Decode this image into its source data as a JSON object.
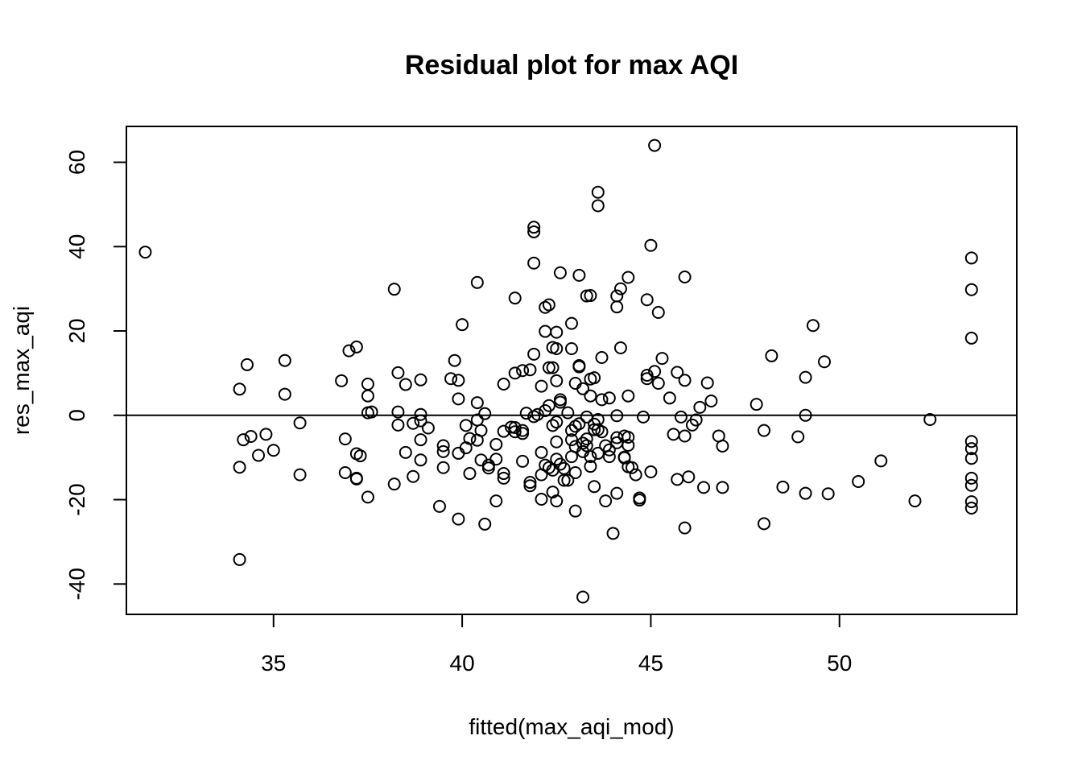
{
  "chart_data": {
    "type": "scatter",
    "title": "Residual plot for max AQI",
    "xlabel": "fitted(max_aqi_mod)",
    "ylabel": "res_max_aqi",
    "xlim": [
      31.1,
      54.7
    ],
    "ylim": [
      -47.2,
      68.5
    ],
    "xticks": [
      35,
      40,
      45,
      50
    ],
    "yticks": [
      -40,
      -20,
      0,
      20,
      40,
      60
    ],
    "hline": 0,
    "grid": false,
    "legend": "none",
    "marker_color": "#000000",
    "points": [
      [
        31.6,
        38.7
      ],
      [
        34.1,
        6.2
      ],
      [
        34.1,
        -12.3
      ],
      [
        34.1,
        -34.2
      ],
      [
        34.2,
        -5.8
      ],
      [
        34.3,
        12.0
      ],
      [
        34.4,
        -5.0
      ],
      [
        34.6,
        -9.5
      ],
      [
        34.8,
        -4.5
      ],
      [
        35.0,
        -8.3
      ],
      [
        35.3,
        13.0
      ],
      [
        35.3,
        5.0
      ],
      [
        35.7,
        -1.8
      ],
      [
        35.7,
        -14.1
      ],
      [
        36.8,
        8.2
      ],
      [
        36.9,
        -5.6
      ],
      [
        36.9,
        -13.6
      ],
      [
        37.0,
        15.3
      ],
      [
        37.2,
        16.2
      ],
      [
        37.2,
        -9.1
      ],
      [
        37.2,
        -14.9
      ],
      [
        37.2,
        -15.1
      ],
      [
        37.3,
        -9.6
      ],
      [
        37.5,
        7.4
      ],
      [
        37.5,
        4.6
      ],
      [
        37.5,
        0.6
      ],
      [
        37.5,
        -19.4
      ],
      [
        37.6,
        0.8
      ],
      [
        38.2,
        29.9
      ],
      [
        38.2,
        -16.3
      ],
      [
        38.3,
        10.1
      ],
      [
        38.3,
        0.8
      ],
      [
        38.3,
        -2.3
      ],
      [
        38.5,
        7.3
      ],
      [
        38.5,
        -8.8
      ],
      [
        38.7,
        -1.9
      ],
      [
        38.7,
        -14.5
      ],
      [
        38.9,
        8.4
      ],
      [
        38.9,
        0.2
      ],
      [
        38.9,
        -1.3
      ],
      [
        38.9,
        -5.8
      ],
      [
        38.9,
        -10.6
      ],
      [
        39.1,
        -3.0
      ],
      [
        39.4,
        -21.6
      ],
      [
        39.5,
        -7.2
      ],
      [
        39.5,
        -8.6
      ],
      [
        39.5,
        -12.4
      ],
      [
        39.7,
        8.7
      ],
      [
        39.8,
        13.0
      ],
      [
        39.9,
        8.3
      ],
      [
        39.9,
        3.9
      ],
      [
        39.9,
        -9.0
      ],
      [
        39.9,
        -24.6
      ],
      [
        40.0,
        21.5
      ],
      [
        40.1,
        -2.4
      ],
      [
        40.1,
        -7.7
      ],
      [
        40.2,
        -5.5
      ],
      [
        40.2,
        -13.8
      ],
      [
        40.4,
        31.5
      ],
      [
        40.4,
        3.0
      ],
      [
        40.4,
        -1.1
      ],
      [
        40.4,
        -5.9
      ],
      [
        40.5,
        -10.6
      ],
      [
        40.5,
        -3.6
      ],
      [
        40.6,
        0.4
      ],
      [
        40.6,
        -25.8
      ],
      [
        40.7,
        -11.8
      ],
      [
        40.7,
        -12.5
      ],
      [
        40.9,
        -6.9
      ],
      [
        40.9,
        -10.4
      ],
      [
        40.9,
        -20.3
      ],
      [
        41.1,
        7.4
      ],
      [
        41.1,
        -3.8
      ],
      [
        41.1,
        -13.8
      ],
      [
        41.1,
        -14.9
      ],
      [
        41.3,
        -2.8
      ],
      [
        41.4,
        27.8
      ],
      [
        41.4,
        10.0
      ],
      [
        41.4,
        -2.9
      ],
      [
        41.4,
        -3.9
      ],
      [
        41.6,
        10.6
      ],
      [
        41.6,
        -3.6
      ],
      [
        41.6,
        -4.3
      ],
      [
        41.6,
        -10.9
      ],
      [
        41.7,
        0.5
      ],
      [
        41.8,
        10.8
      ],
      [
        41.8,
        -15.9
      ],
      [
        41.8,
        -16.7
      ],
      [
        41.9,
        44.6
      ],
      [
        41.9,
        43.5
      ],
      [
        41.9,
        36.1
      ],
      [
        41.9,
        14.5
      ],
      [
        41.9,
        -0.3
      ],
      [
        42.0,
        0.2
      ],
      [
        42.1,
        6.9
      ],
      [
        42.1,
        -8.8
      ],
      [
        42.1,
        -14.1
      ],
      [
        42.1,
        -19.9
      ],
      [
        42.2,
        25.6
      ],
      [
        42.2,
        19.9
      ],
      [
        42.2,
        1.1
      ],
      [
        42.2,
        -11.8
      ],
      [
        42.3,
        26.2
      ],
      [
        42.3,
        11.3
      ],
      [
        42.3,
        2.3
      ],
      [
        42.3,
        -12.4
      ],
      [
        42.4,
        16.1
      ],
      [
        42.4,
        11.3
      ],
      [
        42.4,
        -2.4
      ],
      [
        42.4,
        -13.0
      ],
      [
        42.4,
        -18.2
      ],
      [
        42.5,
        19.7
      ],
      [
        42.5,
        15.8
      ],
      [
        42.5,
        8.2
      ],
      [
        42.5,
        -1.6
      ],
      [
        42.5,
        -6.3
      ],
      [
        42.5,
        -10.4
      ],
      [
        42.5,
        -20.3
      ],
      [
        42.6,
        33.8
      ],
      [
        42.6,
        3.7
      ],
      [
        42.6,
        3.1
      ],
      [
        42.6,
        -11.6
      ],
      [
        42.7,
        -12.6
      ],
      [
        42.7,
        -15.4
      ],
      [
        42.8,
        0.6
      ],
      [
        42.8,
        -15.4
      ],
      [
        42.9,
        21.8
      ],
      [
        42.9,
        15.8
      ],
      [
        42.9,
        -3.6
      ],
      [
        42.9,
        -5.8
      ],
      [
        42.9,
        -9.8
      ],
      [
        43.0,
        7.6
      ],
      [
        43.0,
        -2.6
      ],
      [
        43.0,
        -7.4
      ],
      [
        43.0,
        -13.6
      ],
      [
        43.0,
        -22.7
      ],
      [
        43.1,
        33.2
      ],
      [
        43.1,
        11.8
      ],
      [
        43.1,
        11.5
      ],
      [
        43.1,
        -2.0
      ],
      [
        43.2,
        6.3
      ],
      [
        43.2,
        -6.6
      ],
      [
        43.2,
        -8.6
      ],
      [
        43.2,
        -43.1
      ],
      [
        43.3,
        28.3
      ],
      [
        43.3,
        -0.4
      ],
      [
        43.3,
        -5.6
      ],
      [
        43.3,
        -7.2
      ],
      [
        43.4,
        28.4
      ],
      [
        43.4,
        8.6
      ],
      [
        43.4,
        4.6
      ],
      [
        43.4,
        -9.8
      ],
      [
        43.4,
        -12.1
      ],
      [
        43.5,
        8.9
      ],
      [
        43.5,
        -2.1
      ],
      [
        43.5,
        -3.4
      ],
      [
        43.5,
        -16.9
      ],
      [
        43.6,
        52.9
      ],
      [
        43.6,
        49.7
      ],
      [
        43.6,
        -1.0
      ],
      [
        43.6,
        -3.4
      ],
      [
        43.6,
        -9.0
      ],
      [
        43.7,
        13.7
      ],
      [
        43.7,
        3.7
      ],
      [
        43.7,
        -3.9
      ],
      [
        43.8,
        -7.2
      ],
      [
        43.8,
        -20.3
      ],
      [
        43.9,
        4.1
      ],
      [
        43.9,
        -8.2
      ],
      [
        43.9,
        -9.8
      ],
      [
        44.0,
        -28.0
      ],
      [
        44.1,
        28.3
      ],
      [
        44.1,
        25.7
      ],
      [
        44.1,
        -0.1
      ],
      [
        44.1,
        -5.3
      ],
      [
        44.1,
        -6.5
      ],
      [
        44.1,
        -18.5
      ],
      [
        44.2,
        30.0
      ],
      [
        44.2,
        16.0
      ],
      [
        44.3,
        -4.9
      ],
      [
        44.3,
        -9.9
      ],
      [
        44.3,
        -10.1
      ],
      [
        44.4,
        32.7
      ],
      [
        44.4,
        4.6
      ],
      [
        44.4,
        -5.2
      ],
      [
        44.4,
        -7.1
      ],
      [
        44.4,
        -12.2
      ],
      [
        44.5,
        -12.4
      ],
      [
        44.6,
        -14.1
      ],
      [
        44.7,
        -19.6
      ],
      [
        44.7,
        -20.1
      ],
      [
        44.8,
        -0.4
      ],
      [
        44.9,
        27.4
      ],
      [
        44.9,
        9.5
      ],
      [
        44.9,
        8.7
      ],
      [
        45.0,
        40.3
      ],
      [
        45.0,
        -13.4
      ],
      [
        45.1,
        64.0
      ],
      [
        45.1,
        10.4
      ],
      [
        45.2,
        24.4
      ],
      [
        45.2,
        7.6
      ],
      [
        45.3,
        13.5
      ],
      [
        45.5,
        4.1
      ],
      [
        45.6,
        -4.5
      ],
      [
        45.7,
        10.2
      ],
      [
        45.7,
        -15.2
      ],
      [
        45.8,
        -0.4
      ],
      [
        45.9,
        32.8
      ],
      [
        45.9,
        8.3
      ],
      [
        45.9,
        -4.9
      ],
      [
        45.9,
        -26.7
      ],
      [
        46.0,
        -14.6
      ],
      [
        46.1,
        -2.3
      ],
      [
        46.2,
        -1.1
      ],
      [
        46.3,
        1.9
      ],
      [
        46.4,
        -17.1
      ],
      [
        46.5,
        7.7
      ],
      [
        46.6,
        3.4
      ],
      [
        46.8,
        -4.9
      ],
      [
        46.9,
        -7.3
      ],
      [
        46.9,
        -17.1
      ],
      [
        47.8,
        2.6
      ],
      [
        48.0,
        -3.6
      ],
      [
        48.0,
        -25.7
      ],
      [
        48.2,
        14.1
      ],
      [
        48.5,
        -17.0
      ],
      [
        48.9,
        -5.1
      ],
      [
        49.1,
        9.0
      ],
      [
        49.1,
        0.0
      ],
      [
        49.1,
        -18.5
      ],
      [
        49.3,
        21.3
      ],
      [
        49.6,
        12.7
      ],
      [
        49.7,
        -18.6
      ],
      [
        50.5,
        -15.7
      ],
      [
        51.1,
        -10.8
      ],
      [
        52.0,
        -20.3
      ],
      [
        52.4,
        -1.0
      ],
      [
        53.5,
        37.3
      ],
      [
        53.5,
        29.8
      ],
      [
        53.5,
        18.3
      ],
      [
        53.5,
        -6.2
      ],
      [
        53.5,
        -7.9
      ],
      [
        53.5,
        -10.2
      ],
      [
        53.5,
        -14.9
      ],
      [
        53.5,
        -16.6
      ],
      [
        53.5,
        -20.5
      ],
      [
        53.5,
        -22.0
      ]
    ]
  }
}
